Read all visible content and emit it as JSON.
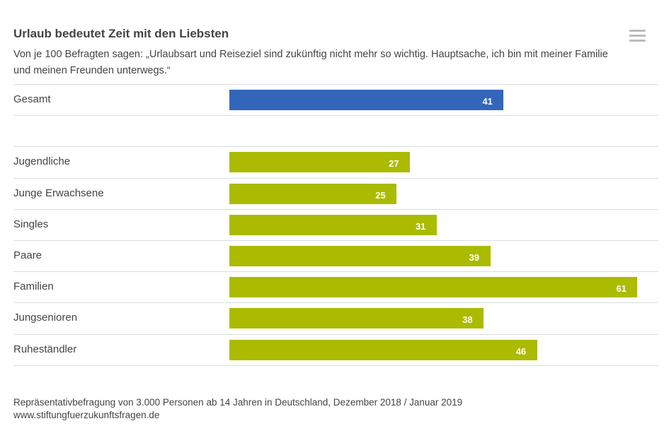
{
  "chart_data": {
    "type": "bar",
    "orientation": "horizontal",
    "title": "Urlaub bedeutet Zeit mit den Liebsten",
    "subtitle": "Von je 100 Befragten sagen: „Urlaubsart und Reiseziel sind zukünftig nicht mehr so wichtig. Hauptsache, ich bin mit meiner Familie und meinen Freunden unterwegs.“",
    "categories": [
      "Gesamt",
      "",
      "Jugendliche",
      "Junge Erwachsene",
      "Singles",
      "Paare",
      "Familien",
      "Jungsenioren",
      "Ruheständler"
    ],
    "values": [
      41,
      null,
      27,
      25,
      31,
      39,
      61,
      38,
      46
    ],
    "colors": [
      "#3366bb",
      null,
      "#aabb00",
      "#aabb00",
      "#aabb00",
      "#aabb00",
      "#aabb00",
      "#aabb00",
      "#aabb00"
    ],
    "data_labels": true,
    "grid": false
  },
  "footer": {
    "source": "Repräsentativbefragung von 3.000 Personen ab 14 Jahren in Deutschland, Dezember 2018 / Januar 2019",
    "url": "www.stiftungfuerzukunftsfragen.de"
  },
  "menu_icon": "hamburger-menu-icon"
}
